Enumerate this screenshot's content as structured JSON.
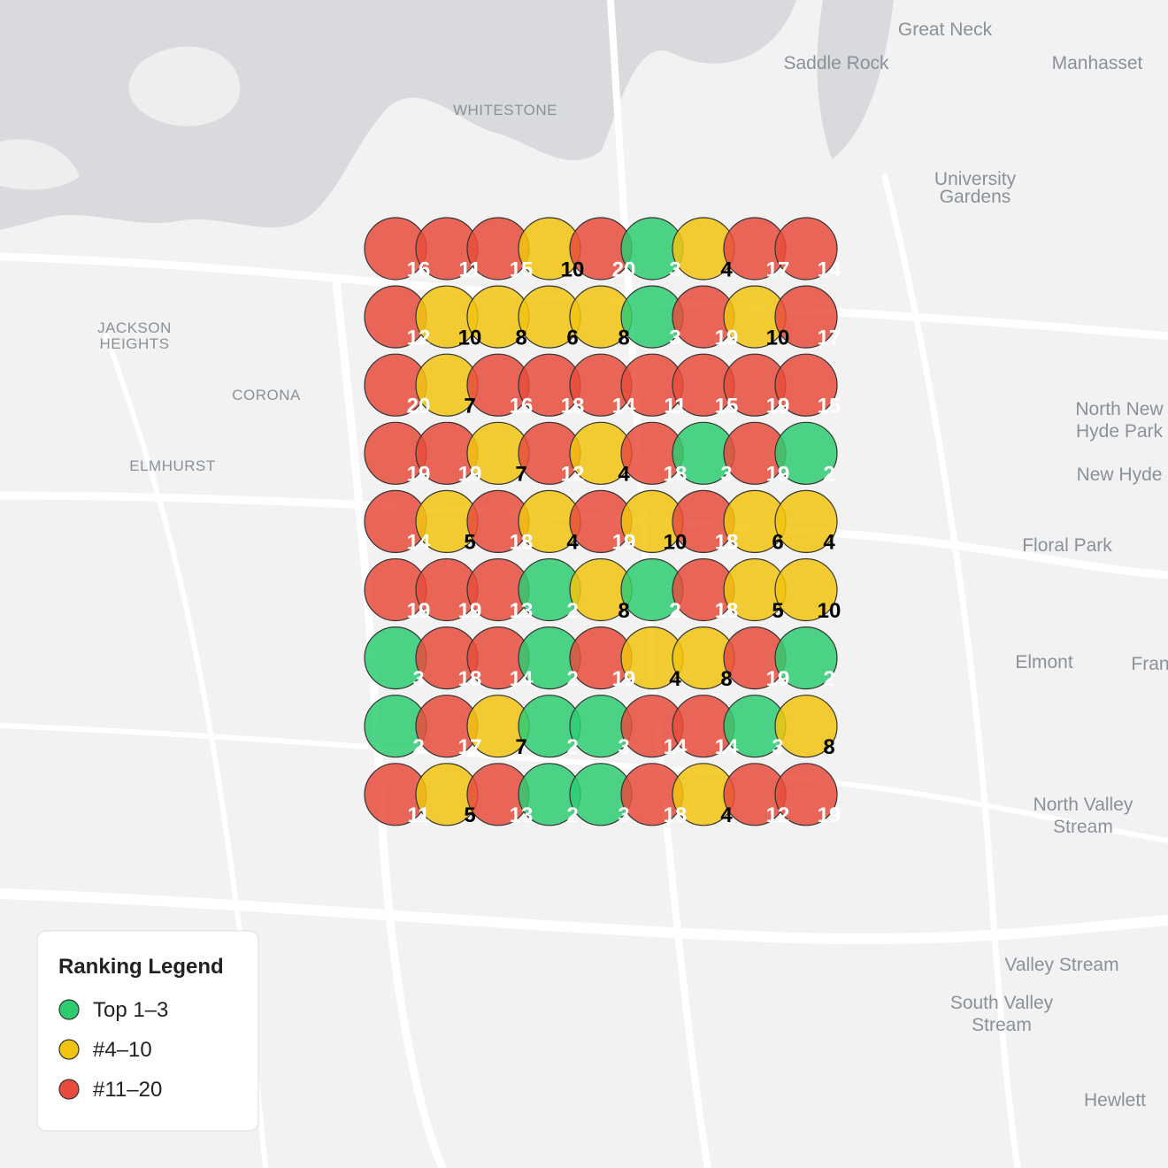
{
  "grid": {
    "rows": [
      [
        16,
        11,
        15,
        10,
        20,
        3,
        4,
        17,
        14
      ],
      [
        12,
        10,
        8,
        6,
        8,
        3,
        19,
        10,
        17
      ],
      [
        20,
        7,
        16,
        18,
        14,
        11,
        15,
        19,
        15
      ],
      [
        19,
        19,
        7,
        12,
        4,
        18,
        3,
        19,
        2
      ],
      [
        14,
        5,
        18,
        4,
        19,
        10,
        18,
        6,
        4
      ],
      [
        19,
        19,
        13,
        2,
        8,
        2,
        18,
        5,
        10
      ],
      [
        3,
        18,
        14,
        2,
        19,
        4,
        8,
        19,
        2
      ],
      [
        2,
        17,
        7,
        2,
        3,
        14,
        14,
        3,
        8
      ],
      [
        11,
        5,
        13,
        2,
        3,
        18,
        4,
        12,
        19
      ]
    ]
  },
  "legend": {
    "title": "Ranking Legend",
    "items": [
      {
        "label": "Top 1–3",
        "color": "#2ecc71",
        "max": 3
      },
      {
        "label": "#4–10",
        "color": "#f1c40f",
        "max": 10
      },
      {
        "label": "#11–20",
        "color": "#e74c3c",
        "max": 20
      }
    ]
  },
  "map": {
    "labels": [
      "Great Neck",
      "Saddle Rock",
      "Manhasset",
      "WHITESTONE",
      "University",
      "Gardens",
      "JACKSON",
      "HEIGHTS",
      "CORONA",
      "ELMHURST",
      "North New",
      "Hyde Park",
      "New Hyde",
      "Floral Park",
      "Elmont",
      "Fran",
      "North Valley",
      "Stream",
      "Valley Stream",
      "South Valley",
      "Stream",
      "Hewlett"
    ]
  }
}
